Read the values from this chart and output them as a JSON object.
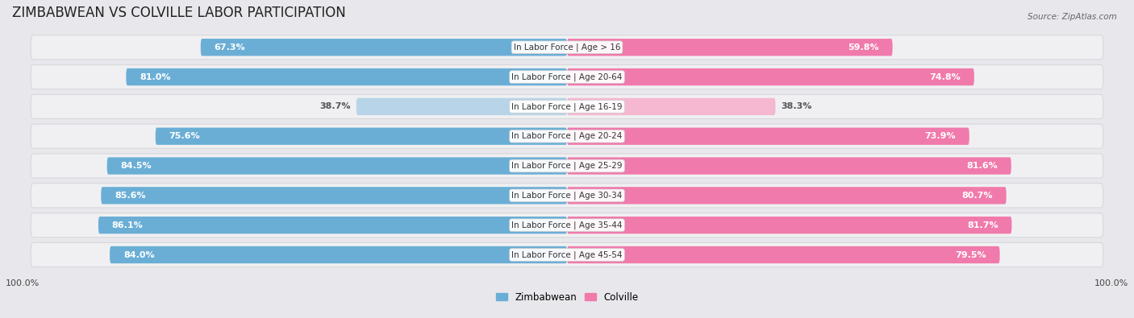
{
  "title": "ZIMBABWEAN VS COLVILLE LABOR PARTICIPATION",
  "source": "Source: ZipAtlas.com",
  "categories": [
    "In Labor Force | Age > 16",
    "In Labor Force | Age 20-64",
    "In Labor Force | Age 16-19",
    "In Labor Force | Age 20-24",
    "In Labor Force | Age 25-29",
    "In Labor Force | Age 30-34",
    "In Labor Force | Age 35-44",
    "In Labor Force | Age 45-54"
  ],
  "zimbabwean": [
    67.3,
    81.0,
    38.7,
    75.6,
    84.5,
    85.6,
    86.1,
    84.0
  ],
  "colville": [
    59.8,
    74.8,
    38.3,
    73.9,
    81.6,
    80.7,
    81.7,
    79.5
  ],
  "zim_color": "#6aaed6",
  "zim_color_light": "#b8d4e8",
  "col_color": "#f07aab",
  "col_color_light": "#f5b8d0",
  "bar_height": 0.58,
  "row_bg_color": "#f0f0f2",
  "row_outline_color": "#d8d8dc",
  "background_color": "#e8e8ec",
  "title_fontsize": 12,
  "label_fontsize": 8,
  "cat_fontsize": 7.5,
  "tick_fontsize": 8,
  "max_val": 100.0
}
